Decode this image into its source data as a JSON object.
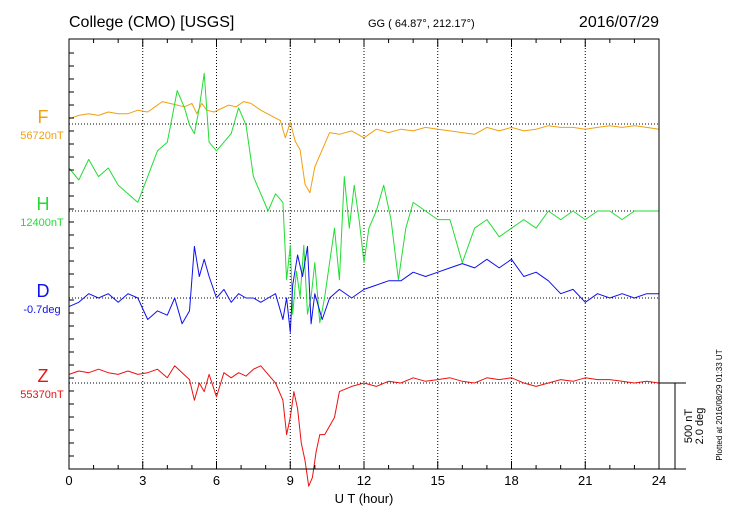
{
  "header": {
    "station": "College (CMO)  [USGS]",
    "coords": "GG ( 64.87°, 212.17°)",
    "date": "2016/07/29"
  },
  "chart_data": {
    "type": "line",
    "xlabel": "U T (hour)",
    "xlim": [
      0,
      24
    ],
    "x_ticks": [
      "0",
      "3",
      "6",
      "9",
      "12",
      "15",
      "18",
      "21",
      "24"
    ],
    "grid": true,
    "scale": {
      "line1": "500 nT",
      "line2": "2.0 deg"
    },
    "plotted_note": "Plotted at 2016/08/29 01:33 UT",
    "series": [
      {
        "name": "F",
        "baseline_label": "56720nT",
        "color": "#f0a010",
        "x": [
          0,
          0.4,
          0.8,
          1.2,
          1.6,
          2,
          2.4,
          2.8,
          3.2,
          3.5,
          3.8,
          4.1,
          4.4,
          4.7,
          5,
          5.2,
          5.4,
          5.6,
          5.9,
          6.2,
          6.5,
          6.8,
          7.1,
          7.4,
          7.8,
          8.2,
          8.6,
          8.8,
          9,
          9.2,
          9.4,
          9.6,
          9.8,
          10,
          10.3,
          10.6,
          11,
          11.5,
          12,
          12.5,
          13,
          13.5,
          14,
          14.5,
          15,
          15.5,
          16,
          16.5,
          17,
          17.5,
          18,
          18.5,
          19,
          19.5,
          20,
          20.5,
          21,
          21.5,
          22,
          22.5,
          23,
          23.5,
          24
        ],
        "values": [
          30,
          50,
          60,
          50,
          70,
          60,
          60,
          80,
          70,
          100,
          130,
          120,
          110,
          100,
          120,
          60,
          120,
          80,
          70,
          90,
          110,
          100,
          130,
          120,
          80,
          50,
          20,
          -80,
          10,
          -100,
          -150,
          -350,
          -400,
          -250,
          -150,
          -50,
          -60,
          -40,
          -80,
          -30,
          -50,
          -30,
          -40,
          -20,
          -30,
          -40,
          -50,
          -60,
          -20,
          -40,
          -20,
          -40,
          -30,
          -10,
          -20,
          -20,
          -30,
          -20,
          -10,
          -20,
          -10,
          -20,
          -30
        ]
      },
      {
        "name": "H",
        "baseline_label": "12400nT",
        "color": "#22dd33",
        "x": [
          0,
          0.4,
          0.8,
          1.2,
          1.6,
          2,
          2.4,
          2.8,
          3.2,
          3.6,
          4,
          4.2,
          4.4,
          4.7,
          4.9,
          5.1,
          5.3,
          5.5,
          5.7,
          6,
          6.3,
          6.6,
          6.9,
          7.2,
          7.5,
          7.8,
          8.1,
          8.4,
          8.7,
          8.85,
          9,
          9.1,
          9.25,
          9.4,
          9.55,
          9.7,
          9.85,
          10,
          10.2,
          10.4,
          10.6,
          10.8,
          11,
          11.2,
          11.4,
          11.6,
          11.8,
          12,
          12.2,
          12.5,
          12.8,
          13.1,
          13.4,
          13.7,
          14,
          14.5,
          15,
          15.5,
          16,
          16.5,
          17,
          17.5,
          18,
          18.5,
          19,
          19.5,
          20,
          20.5,
          21,
          21.5,
          22,
          22.5,
          23,
          23.5,
          24
        ],
        "values": [
          250,
          180,
          300,
          200,
          250,
          150,
          100,
          50,
          200,
          350,
          400,
          550,
          700,
          600,
          500,
          450,
          600,
          800,
          400,
          350,
          400,
          450,
          600,
          500,
          200,
          100,
          0,
          100,
          50,
          -400,
          -200,
          -600,
          -350,
          -500,
          -200,
          -600,
          -500,
          -300,
          -650,
          -500,
          -300,
          -100,
          -400,
          200,
          -100,
          150,
          -50,
          -300,
          -100,
          0,
          150,
          -50,
          -400,
          -100,
          50,
          0,
          -50,
          -50,
          -300,
          -100,
          -50,
          -150,
          -100,
          -50,
          -100,
          0,
          -50,
          0,
          -50,
          0,
          0,
          -50,
          0,
          0,
          0
        ]
      },
      {
        "name": "D",
        "baseline_label": "-0.7deg",
        "color": "#1010ee",
        "x": [
          0,
          0.4,
          0.8,
          1.2,
          1.6,
          2,
          2.4,
          2.8,
          3.2,
          3.6,
          4,
          4.3,
          4.6,
          4.9,
          5.1,
          5.3,
          5.5,
          5.7,
          6,
          6.3,
          6.6,
          6.9,
          7.2,
          7.5,
          7.8,
          8.1,
          8.4,
          8.7,
          8.85,
          9,
          9.1,
          9.3,
          9.5,
          9.7,
          9.85,
          10,
          10.3,
          10.6,
          11,
          11.5,
          12,
          12.5,
          13,
          13.5,
          14,
          14.5,
          15,
          15.5,
          16,
          16.5,
          17,
          17.5,
          18,
          18.5,
          19,
          19.5,
          20,
          20.5,
          21,
          21.5,
          22,
          22.5,
          23,
          23.5,
          24
        ],
        "values": [
          -0.2,
          -0.1,
          0.1,
          0,
          0.1,
          -0.1,
          0.1,
          0,
          -0.5,
          -0.3,
          -0.4,
          0,
          -0.6,
          -0.3,
          1.2,
          0.5,
          0.9,
          0.5,
          0,
          0.2,
          -0.1,
          0.1,
          0,
          0,
          -0.1,
          0,
          0.1,
          -0.5,
          0,
          -0.8,
          0.3,
          1,
          0.5,
          1.2,
          -0.6,
          0.1,
          -0.5,
          0,
          0.2,
          0,
          0.2,
          0.3,
          0.4,
          0.4,
          0.6,
          0.5,
          0.6,
          0.7,
          0.8,
          0.7,
          0.9,
          0.7,
          0.9,
          0.5,
          0.6,
          0.4,
          0.1,
          0.2,
          -0.1,
          0.1,
          0,
          0.1,
          0,
          0.1,
          0.1
        ]
      },
      {
        "name": "Z",
        "baseline_label": "55370nT",
        "color": "#ee1010",
        "x": [
          0,
          0.4,
          0.8,
          1.2,
          1.6,
          2,
          2.4,
          2.8,
          3.2,
          3.6,
          4,
          4.3,
          4.6,
          4.9,
          5.1,
          5.3,
          5.5,
          5.7,
          6,
          6.3,
          6.6,
          6.9,
          7.2,
          7.5,
          7.8,
          8.1,
          8.4,
          8.7,
          8.85,
          9,
          9.15,
          9.3,
          9.45,
          9.6,
          9.75,
          9.9,
          10.05,
          10.2,
          10.4,
          10.6,
          10.8,
          11,
          11.5,
          12,
          12.5,
          13,
          13.5,
          14,
          14.5,
          15,
          15.5,
          16,
          16.5,
          17,
          17.5,
          18,
          18.5,
          19,
          19.5,
          20,
          20.5,
          21,
          21.5,
          22,
          22.5,
          23,
          23.5,
          24
        ],
        "values": [
          50,
          70,
          60,
          80,
          60,
          50,
          70,
          50,
          60,
          80,
          30,
          100,
          60,
          20,
          -100,
          0,
          -50,
          50,
          -80,
          60,
          30,
          60,
          40,
          80,
          100,
          50,
          0,
          -100,
          -300,
          -200,
          -50,
          -150,
          -350,
          -450,
          -600,
          -550,
          -400,
          -300,
          -300,
          -250,
          -200,
          -50,
          -20,
          0,
          -20,
          10,
          0,
          30,
          10,
          20,
          30,
          10,
          0,
          30,
          20,
          30,
          0,
          -20,
          0,
          20,
          10,
          30,
          20,
          20,
          10,
          0,
          10,
          0
        ]
      }
    ]
  }
}
